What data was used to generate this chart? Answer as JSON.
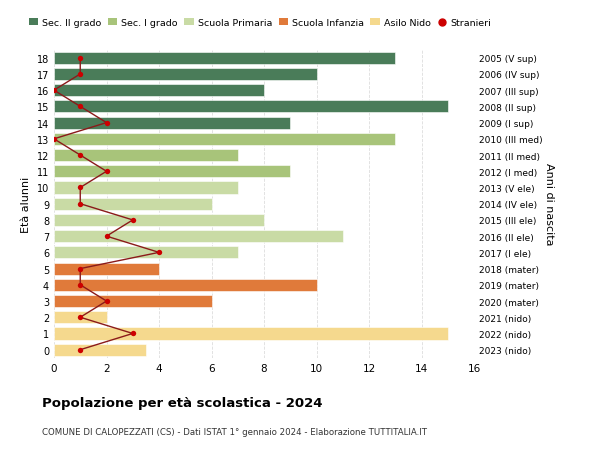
{
  "ages": [
    0,
    1,
    2,
    3,
    4,
    5,
    6,
    7,
    8,
    9,
    10,
    11,
    12,
    13,
    14,
    15,
    16,
    17,
    18
  ],
  "right_labels": [
    "2023 (nido)",
    "2022 (nido)",
    "2021 (nido)",
    "2020 (mater)",
    "2019 (mater)",
    "2018 (mater)",
    "2017 (I ele)",
    "2016 (II ele)",
    "2015 (III ele)",
    "2014 (IV ele)",
    "2013 (V ele)",
    "2012 (I med)",
    "2011 (II med)",
    "2010 (III med)",
    "2009 (I sup)",
    "2008 (II sup)",
    "2007 (III sup)",
    "2006 (IV sup)",
    "2005 (V sup)"
  ],
  "bar_values": [
    3.5,
    15,
    2,
    6,
    10,
    4,
    7,
    11,
    8,
    6,
    7,
    9,
    7,
    13,
    9,
    15,
    8,
    10,
    13
  ],
  "bar_colors": [
    "#f5d98e",
    "#f5d98e",
    "#f5d98e",
    "#e07a3a",
    "#e07a3a",
    "#e07a3a",
    "#c9dba5",
    "#c9dba5",
    "#c9dba5",
    "#c9dba5",
    "#c9dba5",
    "#a8c47a",
    "#a8c47a",
    "#a8c47a",
    "#4a7c59",
    "#4a7c59",
    "#4a7c59",
    "#4a7c59",
    "#4a7c59"
  ],
  "stranieri_values": [
    1,
    3,
    1,
    2,
    1,
    1,
    4,
    2,
    3,
    1,
    1,
    2,
    1,
    0,
    2,
    1,
    0,
    1,
    1
  ],
  "legend_labels": [
    "Sec. II grado",
    "Sec. I grado",
    "Scuola Primaria",
    "Scuola Infanzia",
    "Asilo Nido",
    "Stranieri"
  ],
  "legend_colors": [
    "#4a7c59",
    "#a8c47a",
    "#c9dba5",
    "#e07a3a",
    "#f5d98e",
    "#cc0000"
  ],
  "title": "Popolazione per età scolastica - 2024",
  "subtitle": "COMUNE DI CALOPEZZATI (CS) - Dati ISTAT 1° gennaio 2024 - Elaborazione TUTTITALIA.IT",
  "ylabel": "Età alunni",
  "right_ylabel": "Anni di nascita",
  "xlim": [
    0,
    16
  ],
  "xticks": [
    0,
    2,
    4,
    6,
    8,
    10,
    12,
    14,
    16
  ],
  "background_color": "#ffffff",
  "grid_color": "#dddddd",
  "bar_height": 0.75,
  "stranieri_color": "#cc0000",
  "line_color": "#8b1a1a"
}
